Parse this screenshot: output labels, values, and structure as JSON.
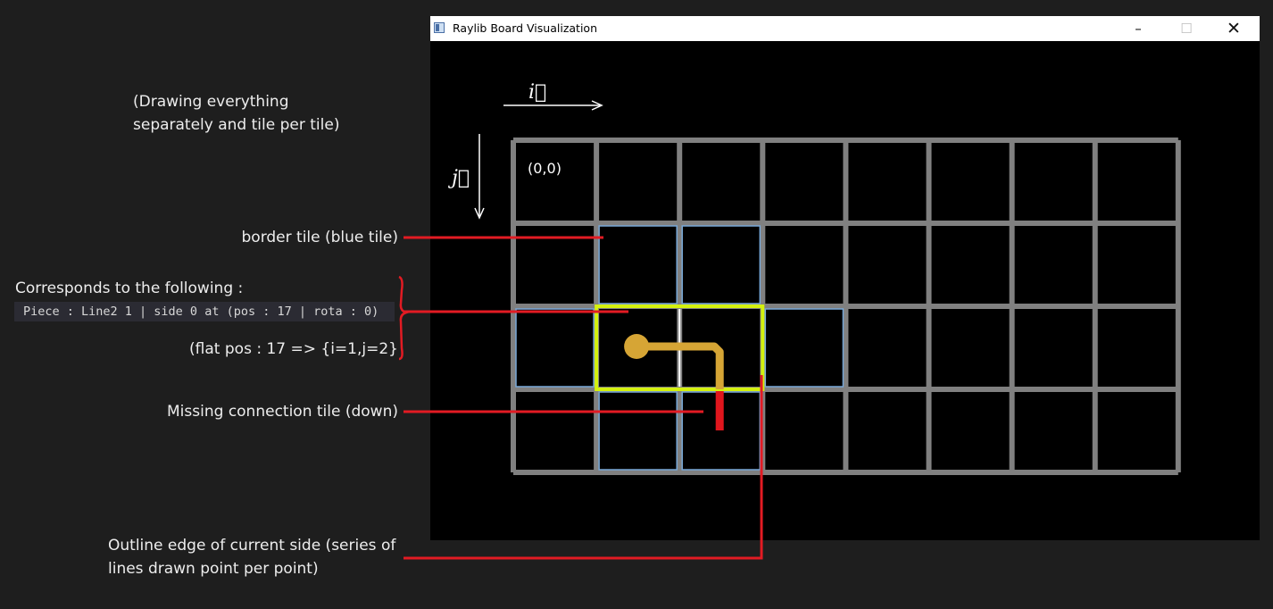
{
  "window": {
    "title": "Raylib Board Visualization",
    "icon": "app-window-icon",
    "minimize_glyph": "–",
    "maximize_glyph": "☐",
    "close_glyph": "✕"
  },
  "board": {
    "i_label": "i⃗",
    "j_label": "j⃗",
    "origin_label": "(0,0)",
    "columns": 8,
    "rows": 4,
    "flat_pos": 17,
    "colors": {
      "grid": "#808080",
      "border_tile": "#78a8d8",
      "current_side_outline": "#d4f10e",
      "piece": "#d6a535",
      "missing_connection": "#e0161d",
      "annotation_line": "#e21b23"
    }
  },
  "annotations": {
    "drawing_note_line1": "(Drawing everything",
    "drawing_note_line2": "separately and tile per tile)",
    "border_tile": "border tile (blue tile)",
    "corresponds": "Corresponds to the following :",
    "code_line": "Piece : Line2 1 | side 0 at (pos : 17 | rota : 0)",
    "flat_pos": "(flat pos : 17 => {i=1,j=2}",
    "missing_connection": "Missing connection tile (down)",
    "outline_line1": "Outline edge of current side (series of",
    "outline_line2": "lines drawn point per point)"
  }
}
